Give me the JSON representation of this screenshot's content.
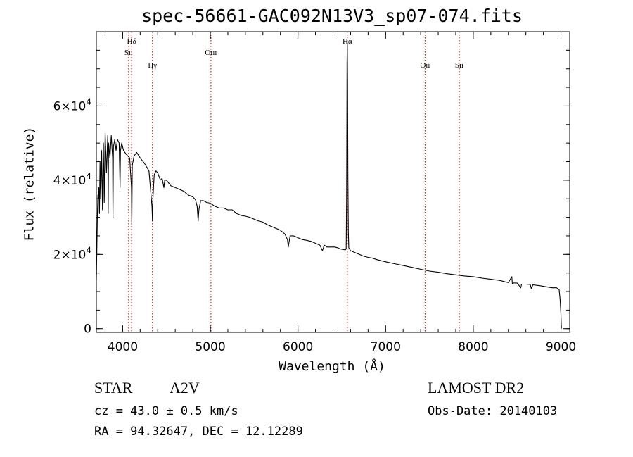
{
  "title": "spec-56661-GAC092N13V3_sp07-074.fits",
  "info": {
    "object_type": "STAR",
    "object_class": "A2V",
    "survey": "LAMOST DR2",
    "cz_line": "cz = 43.0 ± 0.5 km/s",
    "obs_date_line": "Obs-Date: 20140103",
    "radec_line": "RA =  94.32647, DEC =  12.12289"
  },
  "chart_data": {
    "type": "line",
    "title": "spec-56661-GAC092N13V3_sp07-074.fits",
    "xlabel": "Wavelength (Å)",
    "ylabel": "Flux (relative)",
    "xlim": [
      3700,
      9100
    ],
    "ylim": [
      -1000,
      80000
    ],
    "x_ticks": [
      4000,
      5000,
      6000,
      7000,
      8000,
      9000
    ],
    "x_minor_step": 200,
    "y_ticks": [
      {
        "value": 0,
        "label": "0"
      },
      {
        "value": 20000,
        "label": "2×10",
        "exp": "4"
      },
      {
        "value": 40000,
        "label": "4×10",
        "exp": "4"
      },
      {
        "value": 60000,
        "label": "6×10",
        "exp": "4"
      }
    ],
    "y_minor_step": 5000,
    "grid": false,
    "line_color": "#000000",
    "marker_color": "#a00000",
    "line_markers": [
      {
        "x": 4068,
        "label": "Sıı",
        "row": 2
      },
      {
        "x": 4102,
        "label": "Hδ",
        "row": 1
      },
      {
        "x": 4340,
        "label": "Hγ",
        "row": 3
      },
      {
        "x": 5007,
        "label": "Oııı",
        "row": 2
      },
      {
        "x": 6563,
        "label": "Hα",
        "row": 1
      },
      {
        "x": 7450,
        "label": "Oıı",
        "row": 3
      },
      {
        "x": 7840,
        "label": "Sıı",
        "row": 3
      }
    ],
    "series": [
      {
        "x": [
          3700,
          3708,
          3712,
          3718,
          3722,
          3728,
          3735,
          3742,
          3750,
          3760,
          3770,
          3780,
          3790,
          3800,
          3815,
          3830,
          3835,
          3840,
          3855,
          3870,
          3885,
          3889,
          3895,
          3910,
          3925,
          3940,
          3960,
          3970,
          3975,
          3990,
          4010,
          4040,
          4080,
          4100,
          4104,
          4110,
          4130,
          4160,
          4200,
          4250,
          4300,
          4335,
          4340,
          4345,
          4360,
          4380,
          4400,
          4430,
          4450,
          4470,
          4480,
          4500,
          4550,
          4600,
          4650,
          4700,
          4750,
          4800,
          4830,
          4850,
          4861,
          4870,
          4890,
          4920,
          4960,
          5000,
          5050,
          5100,
          5150,
          5200,
          5250,
          5300,
          5350,
          5400,
          5450,
          5500,
          5550,
          5600,
          5650,
          5700,
          5750,
          5800,
          5850,
          5880,
          5890,
          5896,
          5910,
          5950,
          6000,
          6050,
          6100,
          6150,
          6200,
          6250,
          6280,
          6300,
          6330,
          6380,
          6420,
          6450,
          6480,
          6520,
          6540,
          6550,
          6555,
          6558,
          6560,
          6563,
          6566,
          6570,
          6575,
          6580,
          6600,
          6650,
          6700,
          6750,
          6800,
          6850,
          6900,
          6950,
          7000,
          7100,
          7200,
          7300,
          7400,
          7500,
          7600,
          7700,
          7800,
          7900,
          8000,
          8100,
          8200,
          8300,
          8400,
          8440,
          8446,
          8452,
          8500,
          8542,
          8550,
          8600,
          8650,
          8662,
          8680,
          8750,
          8800,
          8850,
          8900,
          8950,
          8980,
          8990,
          9000,
          9005
        ],
        "y": [
          13000,
          25000,
          31000,
          36000,
          35000,
          38000,
          31000,
          45000,
          35000,
          48000,
          32000,
          50000,
          34000,
          53000,
          42000,
          52000,
          31000,
          50000,
          46000,
          52000,
          46000,
          30000,
          49000,
          51000,
          48000,
          51000,
          50000,
          38000,
          48000,
          50000,
          48000,
          47000,
          46000,
          38000,
          28000,
          44000,
          46500,
          47500,
          46000,
          44500,
          42500,
          33000,
          29000,
          35000,
          41500,
          42500,
          42000,
          40000,
          40500,
          38000,
          40000,
          40000,
          38500,
          38000,
          37500,
          37000,
          36000,
          35500,
          34800,
          33000,
          29000,
          32000,
          34500,
          34500,
          34000,
          33800,
          33000,
          32500,
          32500,
          32000,
          32000,
          31000,
          30500,
          30300,
          30000,
          29500,
          29000,
          28700,
          28000,
          27500,
          27000,
          26500,
          25500,
          24000,
          22000,
          23000,
          25000,
          25000,
          24500,
          24000,
          23800,
          23500,
          23000,
          22500,
          21000,
          22500,
          22000,
          22000,
          22000,
          21800,
          21500,
          21300,
          21200,
          21500,
          35000,
          60000,
          72000,
          77000,
          66000,
          40000,
          26000,
          21800,
          21000,
          20500,
          20000,
          19500,
          19200,
          19000,
          18600,
          18300,
          18000,
          17500,
          17000,
          16500,
          16000,
          15500,
          15200,
          14800,
          14500,
          14200,
          14000,
          13600,
          13300,
          13000,
          12400,
          14000,
          12000,
          12300,
          12300,
          11000,
          12000,
          12000,
          11900,
          10800,
          11800,
          11600,
          11400,
          11200,
          11000,
          11000,
          10500,
          8000,
          4000,
          0
        ]
      }
    ]
  }
}
